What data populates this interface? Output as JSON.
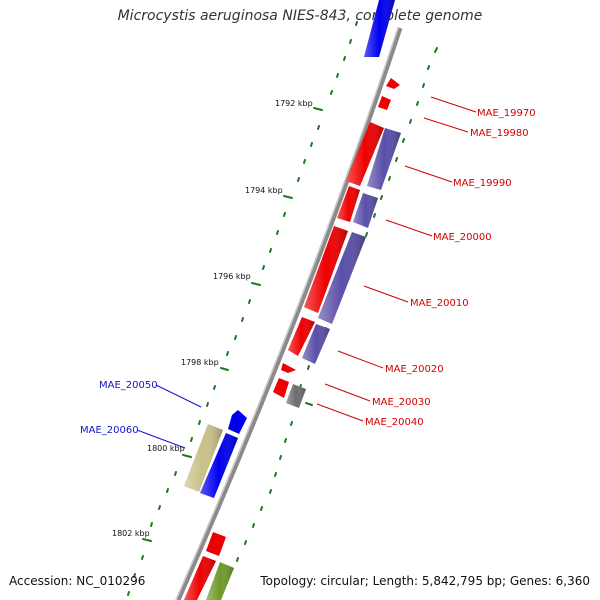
{
  "title": "Microcystis aeruginosa NIES-843, complete genome",
  "accession": "Accession: NC_010296",
  "info": "Topology: circular; Length: 5,842,795 bp; Genes: 6,360",
  "kbp_labels": [
    "1792 kbp",
    "1794 kbp",
    "1796 kbp",
    "1798 kbp",
    "1800 kbp",
    "1802 kbp"
  ],
  "gene_labels": [
    {
      "text": "MAE_19970",
      "color": "#d40000"
    },
    {
      "text": "MAE_19980",
      "color": "#d40000"
    },
    {
      "text": "MAE_19990",
      "color": "#d40000"
    },
    {
      "text": "MAE_20000",
      "color": "#d40000"
    },
    {
      "text": "MAE_20010",
      "color": "#d40000"
    },
    {
      "text": "MAE_20020",
      "color": "#d40000"
    },
    {
      "text": "MAE_20030",
      "color": "#d40000"
    },
    {
      "text": "MAE_20040",
      "color": "#d40000"
    },
    {
      "text": "MAE_20050",
      "color": "#1414c8"
    },
    {
      "text": "MAE_20060",
      "color": "#1414c8"
    }
  ],
  "colors": {
    "backbone": "#8a8a8a",
    "forward_cds": "#ee0000",
    "reverse_cds": "#5a4fa8",
    "blue_cds": "#0000ee",
    "gray_cds": "#6e6e6e",
    "khaki_cds": "#c8c088",
    "olive_cds": "#6f9a2c",
    "tick": "#1f7a1f"
  }
}
